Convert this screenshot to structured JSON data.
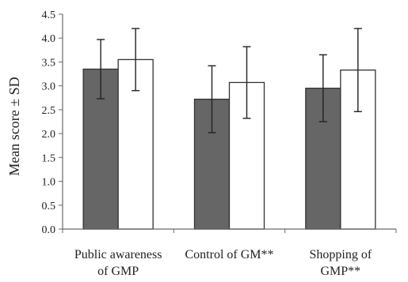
{
  "chart_data": {
    "type": "bar",
    "title": "",
    "xlabel": "",
    "ylabel": "Mean score ± SD",
    "ylim": [
      0,
      4.5
    ],
    "yticks": [
      "0.0",
      "0.5",
      "1.0",
      "1.5",
      "2.0",
      "2.5",
      "3.0",
      "3.5",
      "4.0",
      "4.5"
    ],
    "categories": [
      [
        "Public awareness",
        "of GMP"
      ],
      [
        "Control of GM**"
      ],
      [
        "Shopping of",
        "GMP**"
      ]
    ],
    "legend": "none",
    "grid": false,
    "series": [
      {
        "color": "#666666",
        "values": [
          3.35,
          2.72,
          2.95
        ],
        "sd": [
          0.62,
          0.7,
          0.7
        ]
      },
      {
        "color": "#ffffff",
        "values": [
          3.55,
          3.07,
          3.33
        ],
        "sd": [
          0.65,
          0.75,
          0.87
        ]
      }
    ]
  }
}
